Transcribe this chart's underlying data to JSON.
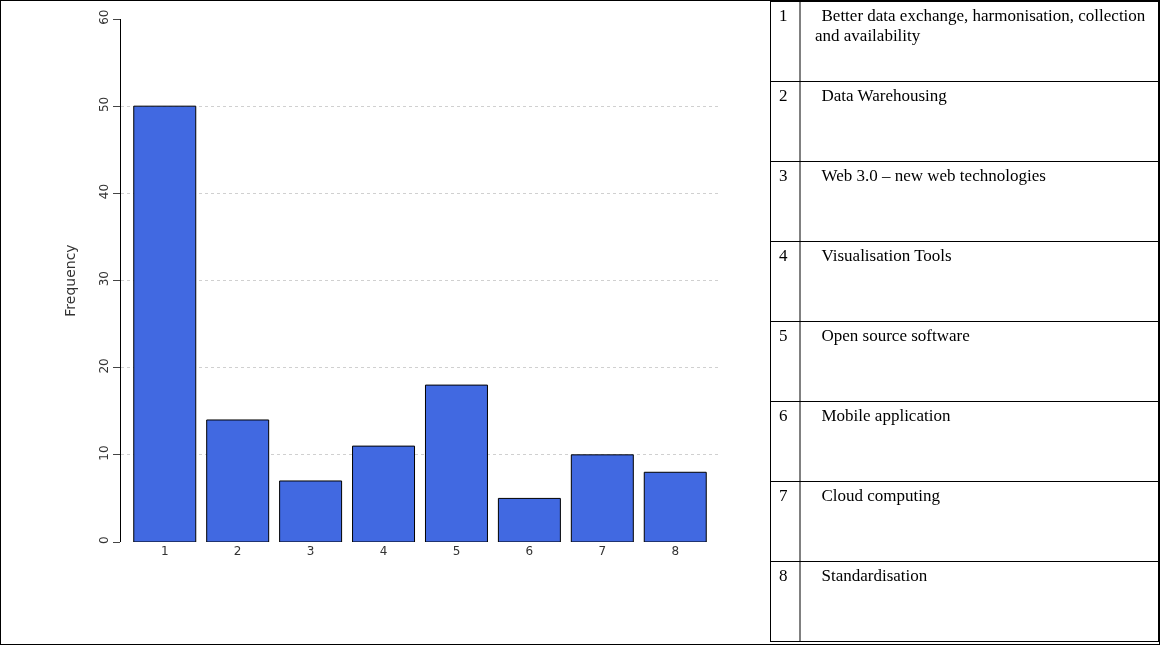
{
  "chart_data": [
    {
      "type": "bar",
      "ylabel": "Frequency",
      "categories": [
        "1",
        "2",
        "3",
        "4",
        "5",
        "6",
        "7",
        "8"
      ],
      "values": [
        50,
        14,
        7,
        11,
        18,
        5,
        10,
        8
      ],
      "color": "#4169e1",
      "ylim": [
        0,
        60
      ],
      "yticks": [
        0,
        10,
        20,
        30,
        40,
        50,
        60
      ],
      "grid": "y"
    },
    {
      "type": "other",
      "annotations": [
        "1",
        "Better data exchange, harmonisation, collection and availability",
        "2",
        "Data Warehousing",
        "3",
        "Web 3.0 – new web technologies",
        "4",
        "Visualisation Tools",
        "5",
        "Open source software",
        "6",
        "Mobile application",
        "7",
        "Cloud computing",
        "8",
        "Standardisation"
      ]
    }
  ]
}
